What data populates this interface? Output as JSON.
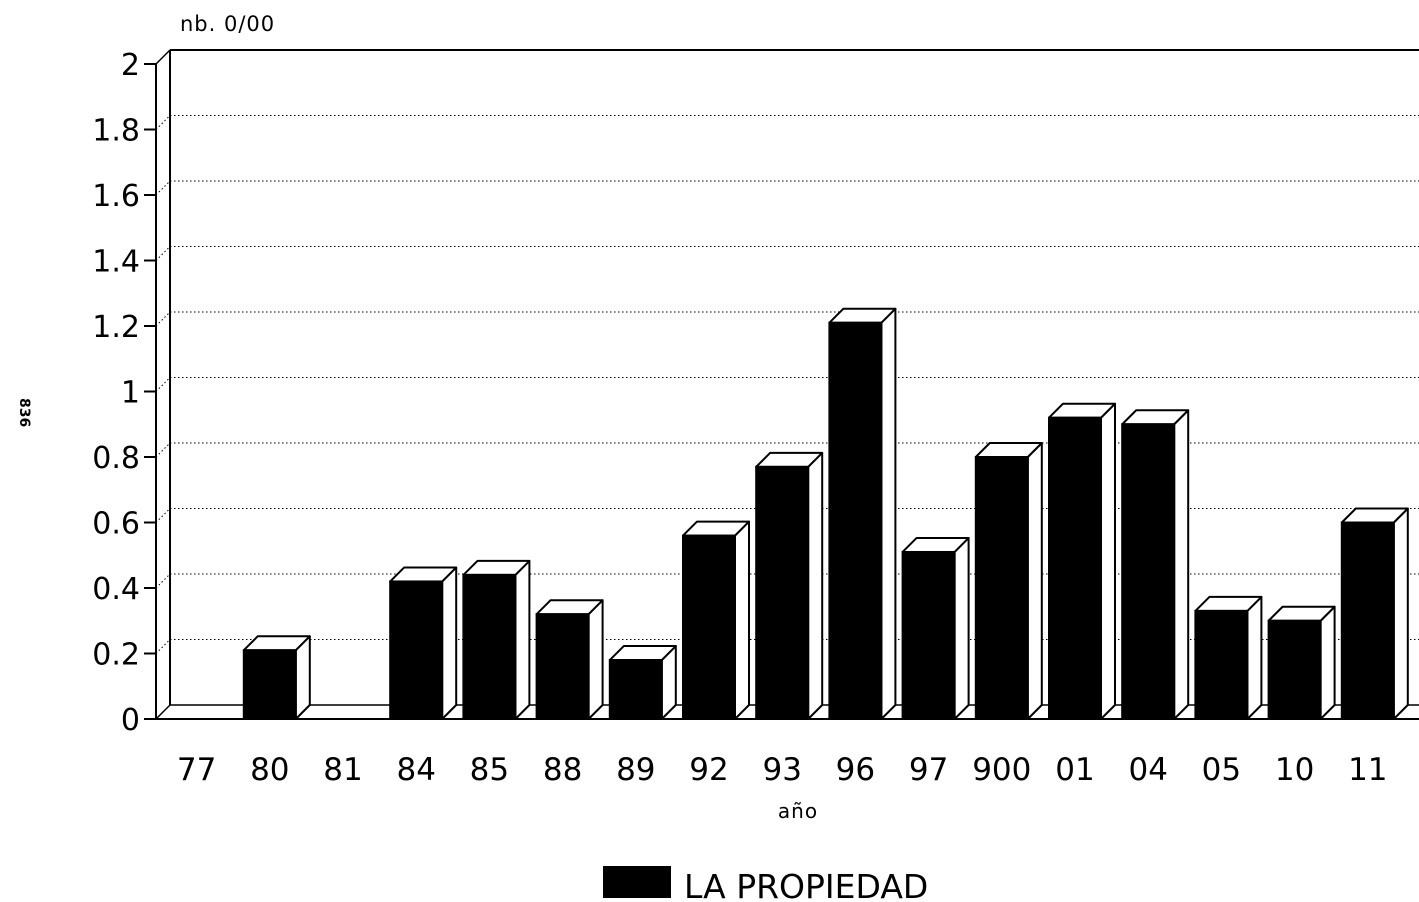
{
  "page": {
    "number": "836"
  },
  "chart_data": {
    "type": "bar",
    "title": "",
    "ylabel": "nb. 0/00",
    "xlabel": "año",
    "ylim": [
      0,
      2
    ],
    "yticks": [
      "0",
      "0.2",
      "0.4",
      "0.6",
      "0.8",
      "1",
      "1.2",
      "1.4",
      "1.6",
      "1.8",
      "2"
    ],
    "grid": true,
    "legend": "bottom-center",
    "categories": [
      "77",
      "80",
      "81",
      "84",
      "85",
      "88",
      "89",
      "92",
      "93",
      "96",
      "97",
      "900",
      "01",
      "04",
      "05",
      "10",
      "11"
    ],
    "series": [
      {
        "name": "LA PROPIEDAD",
        "values": [
          0,
          0.21,
          0,
          0.42,
          0.44,
          0.32,
          0.18,
          0.56,
          0.77,
          1.21,
          0.51,
          0.8,
          0.92,
          0.9,
          0.33,
          0.3,
          0.6
        ],
        "color": "#000000"
      }
    ]
  }
}
